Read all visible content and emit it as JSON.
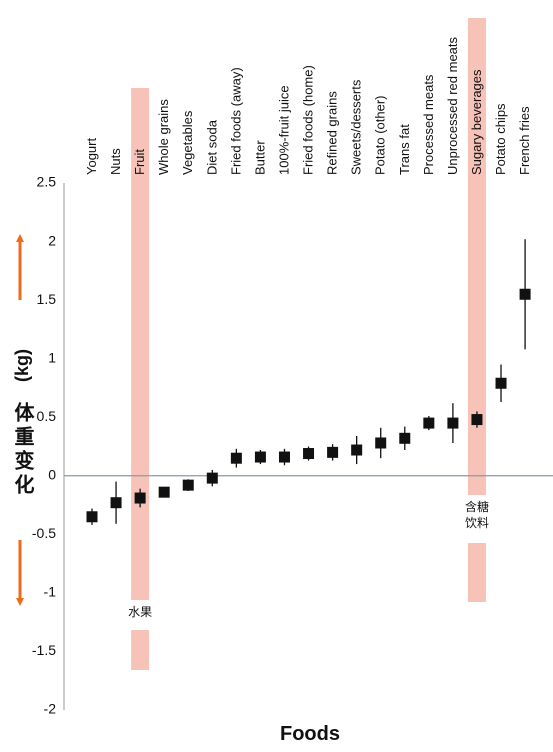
{
  "chart_data": {
    "type": "errorbar",
    "x_label": "Foods",
    "y_label": "体重变化",
    "y_unit": "(kg)",
    "categories": [
      "Yogurt",
      "Nuts",
      "Fruit",
      "Whole grains",
      "Vegetables",
      "Diet soda",
      "Fried foods (away)",
      "Butter",
      "100%-fruit juice",
      "Fried foods (home)",
      "Refined grains",
      "Sweets/desserts",
      "Potato (other)",
      "Trans fat",
      "Processed meats",
      "Unprocessed red meats",
      "Sugary beverages",
      "Potato chips",
      "French fries"
    ],
    "values": [
      -0.35,
      -0.23,
      -0.19,
      -0.14,
      -0.08,
      -0.02,
      0.15,
      0.16,
      0.16,
      0.19,
      0.2,
      0.22,
      0.28,
      0.32,
      0.45,
      0.45,
      0.48,
      0.79,
      1.55
    ],
    "errors": [
      0.07,
      0.18,
      0.08,
      0.04,
      0.05,
      0.07,
      0.08,
      0.06,
      0.07,
      0.06,
      0.07,
      0.12,
      0.13,
      0.1,
      0.06,
      0.17,
      0.07,
      0.16,
      0.47
    ],
    "color": "#111111",
    "ylim": [
      -2,
      2.5
    ],
    "yticks": [
      -2,
      -1.5,
      -1,
      -0.5,
      0,
      0.5,
      1,
      1.5,
      2,
      2.5
    ],
    "annotations": [
      {
        "category": "Fruit",
        "lines": [
          "水果"
        ]
      },
      {
        "category": "Sugary beverages",
        "lines": [
          "含糖",
          "饮料"
        ]
      }
    ],
    "highlight_color": "#f7c3b8"
  }
}
